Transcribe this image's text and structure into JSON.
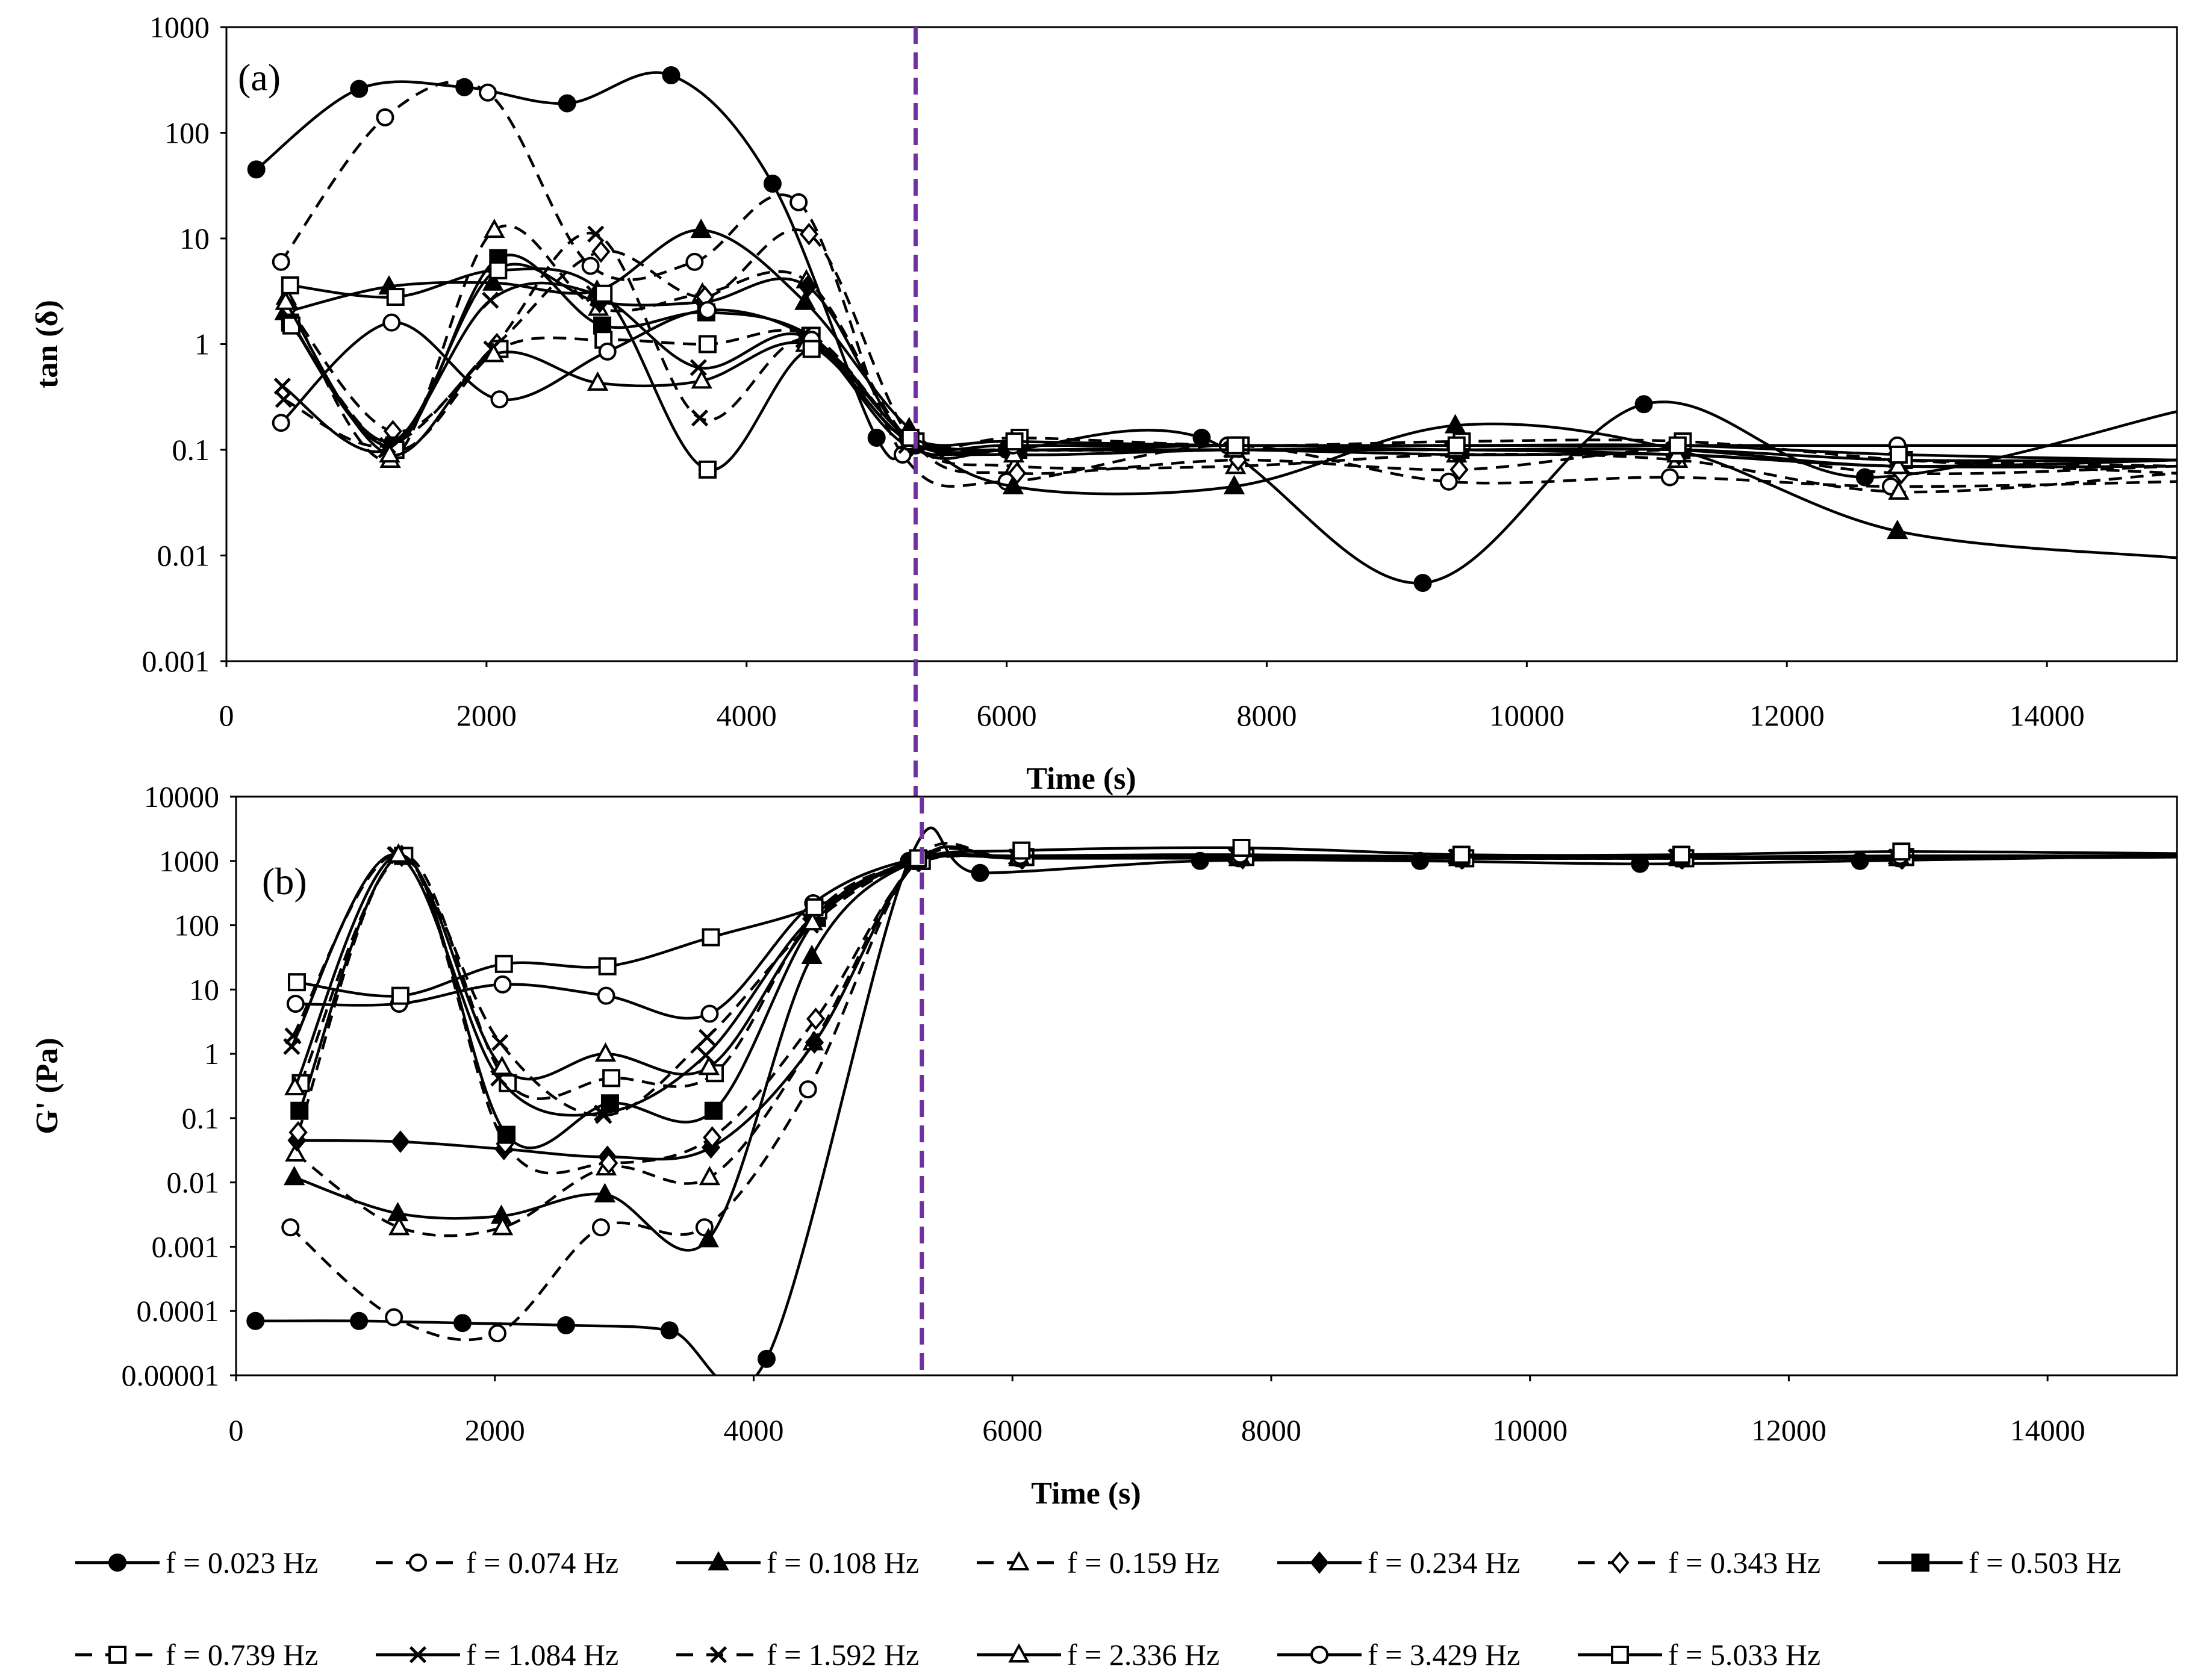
{
  "chart_data": [
    {
      "panel": "a",
      "type": "line",
      "yscale": "log",
      "tag": "(a)",
      "xlabel": "Time (s)",
      "ylabel": "tan (δ)",
      "xlim": [
        0,
        15000
      ],
      "ylim": [
        0.001,
        1000
      ],
      "xticks": [
        "0",
        "2000",
        "4000",
        "6000",
        "8000",
        "10000",
        "12000",
        "14000"
      ],
      "yticks": [
        "0.001",
        "0.01",
        "0.1",
        "1",
        "10",
        "100",
        "1000"
      ],
      "vline_x": 5300,
      "series": [
        {
          "name": "f = 0.023 Hz",
          "marker": "circle-filled",
          "dash": false,
          "x": [
            230,
            1020,
            1830,
            2620,
            3420,
            4200,
            5000,
            5300,
            6000,
            7500,
            9200,
            10900,
            12600,
            15000
          ],
          "y": [
            45,
            260,
            270,
            190,
            350,
            33,
            0.13,
            0.11,
            0.1,
            0.13,
            0.0055,
            0.27,
            0.055,
            0.23
          ]
        },
        {
          "name": "f = 0.074 Hz",
          "marker": "circle-open",
          "dash": true,
          "x": [
            420,
            1220,
            2010,
            2800,
            3600,
            4400,
            5200,
            6000,
            7700,
            9400,
            11100,
            12800,
            15000
          ],
          "y": [
            6,
            140,
            240,
            5.5,
            6,
            22,
            0.09,
            0.05,
            0.11,
            0.05,
            0.055,
            0.045,
            0.05
          ]
        },
        {
          "name": "f = 0.108 Hz",
          "marker": "triangle-filled",
          "dash": false,
          "x": [
            450,
            1250,
            2050,
            2850,
            3650,
            4450,
            5250,
            6050,
            7750,
            9450,
            11150,
            12850,
            15000
          ],
          "y": [
            2,
            3.5,
            3.8,
            3.2,
            12,
            2.5,
            0.16,
            0.045,
            0.045,
            0.17,
            0.1,
            0.017,
            0.0095
          ]
        },
        {
          "name": "f = 0.159 Hz",
          "marker": "triangle-open",
          "dash": true,
          "x": [
            460,
            1260,
            2060,
            2860,
            3660,
            4460,
            5260,
            6060,
            7760,
            9460,
            11160,
            12860,
            15000
          ],
          "y": [
            2.8,
            0.08,
            12,
            2.2,
            3,
            4,
            0.12,
            0.07,
            0.07,
            0.09,
            0.08,
            0.04,
            0.06
          ]
        },
        {
          "name": "f = 0.234 Hz",
          "marker": "diamond-filled",
          "dash": false,
          "x": [
            470,
            1270,
            2070,
            2870,
            3670,
            4470,
            5270,
            6070,
            7770,
            9470,
            11170,
            12870,
            15000
          ],
          "y": [
            1.8,
            0.12,
            5,
            2.5,
            2.5,
            3.5,
            0.11,
            0.1,
            0.1,
            0.09,
            0.09,
            0.07,
            0.08
          ]
        },
        {
          "name": "f = 0.343 Hz",
          "marker": "diamond-open",
          "dash": true,
          "x": [
            480,
            1280,
            2080,
            2880,
            3680,
            4480,
            5280,
            6080,
            7780,
            9480,
            11180,
            12880,
            15000
          ],
          "y": [
            2.2,
            0.15,
            1,
            7.5,
            2.8,
            11,
            0.12,
            0.06,
            0.08,
            0.065,
            0.1,
            0.06,
            0.07
          ]
        },
        {
          "name": "f = 0.503 Hz",
          "marker": "square-filled",
          "dash": false,
          "x": [
            490,
            1290,
            2090,
            2890,
            3690,
            4490,
            5290,
            6090,
            7790,
            9490,
            11190,
            12890,
            15000
          ],
          "y": [
            1.6,
            0.11,
            6.5,
            1.5,
            2,
            1.2,
            0.12,
            0.1,
            0.11,
            0.1,
            0.1,
            0.08,
            0.08
          ]
        },
        {
          "name": "f = 0.739 Hz",
          "marker": "square-open",
          "dash": true,
          "x": [
            500,
            1300,
            2100,
            2900,
            3700,
            4500,
            5300,
            6100,
            7800,
            9500,
            11200,
            12900,
            15000
          ],
          "y": [
            1.5,
            0.1,
            0.9,
            1.1,
            1,
            1.2,
            0.12,
            0.13,
            0.11,
            0.12,
            0.12,
            0.08,
            0.06
          ]
        },
        {
          "name": "f = 1.084 Hz",
          "marker": "x",
          "dash": false,
          "x": [
            430,
            1230,
            2030,
            2830,
            3630,
            4430,
            5230,
            6030,
            7730,
            9430,
            11130,
            12830,
            15000
          ],
          "y": [
            0.4,
            0.1,
            2.6,
            3,
            0.6,
            1.2,
            0.11,
            0.1,
            0.1,
            0.1,
            0.1,
            0.07,
            0.08
          ]
        },
        {
          "name": "f = 1.592 Hz",
          "marker": "x",
          "dash": true,
          "x": [
            440,
            1240,
            2040,
            2840,
            3640,
            4440,
            5240,
            6040,
            7740,
            9440,
            11140,
            12840,
            15000
          ],
          "y": [
            0.3,
            0.11,
            0.9,
            11,
            0.2,
            1.1,
            0.12,
            0.1,
            0.1,
            0.1,
            0.1,
            0.08,
            0.07
          ]
        },
        {
          "name": "f = 2.336 Hz",
          "marker": "triangle-open",
          "dash": false,
          "x": [
            455,
            1255,
            2055,
            2855,
            3655,
            4455,
            5255,
            6055,
            7755,
            9455,
            11155,
            12855,
            15000
          ],
          "y": [
            2.5,
            0.09,
            0.8,
            0.43,
            0.45,
            1,
            0.12,
            0.09,
            0.1,
            0.1,
            0.09,
            0.07,
            0.07
          ]
        },
        {
          "name": "f = 3.429 Hz",
          "marker": "circle-open",
          "dash": false,
          "x": [
            420,
            1270,
            2100,
            2930,
            3700,
            4500,
            5250,
            6050,
            7750,
            9450,
            11150,
            12850,
            15000
          ],
          "y": [
            0.18,
            1.6,
            0.3,
            0.85,
            2.1,
            1.1,
            0.12,
            0.11,
            0.11,
            0.11,
            0.11,
            0.11,
            0.11
          ]
        },
        {
          "name": "f = 5.033 Hz",
          "marker": "square-open",
          "dash": false,
          "x": [
            490,
            1300,
            2090,
            2900,
            3700,
            4500,
            5260,
            6060,
            7760,
            9460,
            11160,
            12860,
            15000
          ],
          "y": [
            3.6,
            2.8,
            5,
            3,
            0.065,
            0.9,
            0.13,
            0.12,
            0.11,
            0.11,
            0.11,
            0.09,
            0.08
          ]
        }
      ]
    },
    {
      "panel": "b",
      "type": "line",
      "yscale": "log",
      "tag": "(b)",
      "xlabel": "Time (s)",
      "ylabel": "G' (Pa)",
      "xlim": [
        0,
        15000
      ],
      "ylim": [
        1e-05,
        10000
      ],
      "xticks": [
        "0",
        "2000",
        "4000",
        "6000",
        "8000",
        "10000",
        "12000",
        "14000"
      ],
      "yticks": [
        "0.00001",
        "0.0001",
        "0.001",
        "0.01",
        "0.1",
        "1",
        "10",
        "100",
        "1000",
        "10000"
      ],
      "vline_x": 5300,
      "series": [
        {
          "name": "f = 0.023 Hz",
          "marker": "circle-filled",
          "dash": false,
          "x": [
            150,
            950,
            1750,
            2550,
            3350,
            4100,
            5200,
            5750,
            7450,
            9150,
            10850,
            12550,
            15000
          ],
          "y": [
            7e-05,
            7e-05,
            6.5e-05,
            6e-05,
            5e-05,
            1.8e-05,
            1000,
            650,
            1000,
            1000,
            900,
            1000,
            1200
          ]
        },
        {
          "name": "f = 0.074 Hz",
          "marker": "circle-open",
          "dash": true,
          "x": [
            420,
            1220,
            2020,
            2820,
            3620,
            4420,
            5250,
            6050,
            7750,
            9450,
            11150,
            12850,
            15000
          ],
          "y": [
            0.002,
            8e-05,
            4.5e-05,
            0.002,
            0.002,
            0.28,
            1000,
            1100,
            1100,
            1100,
            1100,
            1100,
            1150
          ]
        },
        {
          "name": "f = 0.108 Hz",
          "marker": "triangle-filled",
          "dash": false,
          "x": [
            450,
            1250,
            2050,
            2850,
            3650,
            4450,
            5250,
            6050,
            7750,
            9450,
            11150,
            12850,
            15000
          ],
          "y": [
            0.012,
            0.0033,
            0.003,
            0.0065,
            0.0013,
            33,
            1000,
            1100,
            1100,
            1100,
            1100,
            1100,
            1150
          ]
        },
        {
          "name": "f = 0.159 Hz",
          "marker": "triangle-open",
          "dash": true,
          "x": [
            460,
            1260,
            2060,
            2860,
            3660,
            4460,
            5260,
            6060,
            7760,
            9460,
            11160,
            12860,
            15000
          ],
          "y": [
            0.028,
            0.002,
            0.002,
            0.017,
            0.012,
            1.5,
            1000,
            1100,
            1100,
            1100,
            1100,
            1100,
            1150
          ]
        },
        {
          "name": "f = 0.234 Hz",
          "marker": "diamond-filled",
          "dash": false,
          "x": [
            470,
            1270,
            2070,
            2870,
            3670,
            4470,
            5270,
            6070,
            7770,
            9470,
            11170,
            12870,
            15000
          ],
          "y": [
            0.045,
            0.043,
            0.033,
            0.025,
            0.035,
            1.5,
            1000,
            1100,
            1150,
            1100,
            1100,
            1100,
            1150
          ]
        },
        {
          "name": "f = 0.343 Hz",
          "marker": "diamond-open",
          "dash": true,
          "x": [
            480,
            1280,
            2080,
            2880,
            3680,
            4480,
            5280,
            6080,
            7780,
            9480,
            11180,
            12880,
            15000
          ],
          "y": [
            0.06,
            1200,
            0.04,
            0.02,
            0.05,
            3.5,
            1000,
            1100,
            1100,
            1100,
            1100,
            1100,
            1150
          ]
        },
        {
          "name": "f = 0.503 Hz",
          "marker": "square-filled",
          "dash": false,
          "x": [
            490,
            1290,
            2090,
            2890,
            3690,
            4490,
            5290,
            6090,
            7790,
            9490,
            11190,
            12890,
            15000
          ],
          "y": [
            0.13,
            1200,
            0.055,
            0.17,
            0.13,
            130,
            1000,
            1150,
            1200,
            1100,
            1100,
            1150,
            1200
          ]
        },
        {
          "name": "f = 0.739 Hz",
          "marker": "square-open",
          "dash": true,
          "x": [
            500,
            1300,
            2100,
            2900,
            3700,
            4500,
            5300,
            6100,
            7800,
            9500,
            11200,
            12900,
            15000
          ],
          "y": [
            0.35,
            1200,
            0.35,
            0.42,
            0.5,
            170,
            1000,
            1150,
            1150,
            1100,
            1100,
            1150,
            1200
          ]
        },
        {
          "name": "f = 1.084 Hz",
          "marker": "x",
          "dash": false,
          "x": [
            430,
            1230,
            2030,
            2830,
            3630,
            4430,
            5230,
            6030,
            7730,
            9430,
            11130,
            12830,
            15000
          ],
          "y": [
            1.3,
            1250,
            0.42,
            0.12,
            0.95,
            120,
            1000,
            1150,
            1200,
            1150,
            1150,
            1150,
            1200
          ]
        },
        {
          "name": "f = 1.592 Hz",
          "marker": "x",
          "dash": true,
          "x": [
            440,
            1240,
            2040,
            2840,
            3640,
            4440,
            5240,
            6040,
            7740,
            9440,
            11140,
            12840,
            15000
          ],
          "y": [
            1.9,
            1250,
            1.5,
            0.11,
            1.8,
            100,
            1000,
            1150,
            1200,
            1150,
            1150,
            1150,
            1200
          ]
        },
        {
          "name": "f = 2.336 Hz",
          "marker": "triangle-open",
          "dash": false,
          "x": [
            455,
            1255,
            2055,
            2855,
            3655,
            4455,
            5255,
            6055,
            7755,
            9455,
            11155,
            12855,
            15000
          ],
          "y": [
            0.3,
            1250,
            0.62,
            1,
            0.62,
            110,
            1000,
            1150,
            1200,
            1150,
            1150,
            1150,
            1200
          ]
        },
        {
          "name": "f = 3.429 Hz",
          "marker": "circle-open",
          "dash": false,
          "x": [
            460,
            1260,
            2060,
            2860,
            3660,
            4460,
            5260,
            6060,
            7760,
            9460,
            11160,
            12860,
            15000
          ],
          "y": [
            6,
            6,
            12,
            8,
            4.2,
            220,
            1100,
            1200,
            1250,
            1150,
            1150,
            1200,
            1200
          ]
        },
        {
          "name": "f = 5.033 Hz",
          "marker": "square-open",
          "dash": false,
          "x": [
            470,
            1270,
            2070,
            2870,
            3670,
            4470,
            5270,
            6070,
            7770,
            9470,
            11170,
            12870,
            15000
          ],
          "y": [
            13,
            8,
            25,
            23,
            65,
            190,
            1100,
            1450,
            1600,
            1250,
            1250,
            1400,
            1300
          ]
        }
      ]
    }
  ],
  "legend": [
    {
      "label": "f = 0.023 Hz",
      "marker": "circle-filled",
      "dash": false
    },
    {
      "label": "f = 0.074 Hz",
      "marker": "circle-open",
      "dash": true
    },
    {
      "label": "f = 0.108 Hz",
      "marker": "triangle-filled",
      "dash": false
    },
    {
      "label": "f = 0.159 Hz",
      "marker": "triangle-open",
      "dash": true
    },
    {
      "label": "f = 0.234 Hz",
      "marker": "diamond-filled",
      "dash": false
    },
    {
      "label": "f = 0.343 Hz",
      "marker": "diamond-open",
      "dash": true
    },
    {
      "label": "f = 0.503 Hz",
      "marker": "square-filled",
      "dash": false
    },
    {
      "label": "f = 0.739 Hz",
      "marker": "square-open",
      "dash": true
    },
    {
      "label": "f = 1.084 Hz",
      "marker": "x",
      "dash": false
    },
    {
      "label": "f = 1.592 Hz",
      "marker": "x",
      "dash": true
    },
    {
      "label": "f = 2.336 Hz",
      "marker": "triangle-open",
      "dash": false
    },
    {
      "label": "f = 3.429 Hz",
      "marker": "circle-open",
      "dash": false
    },
    {
      "label": "f = 5.033 Hz",
      "marker": "square-open",
      "dash": false
    }
  ],
  "colors": {
    "line": "#000000",
    "vline": "#7030a0",
    "background": "#ffffff"
  }
}
